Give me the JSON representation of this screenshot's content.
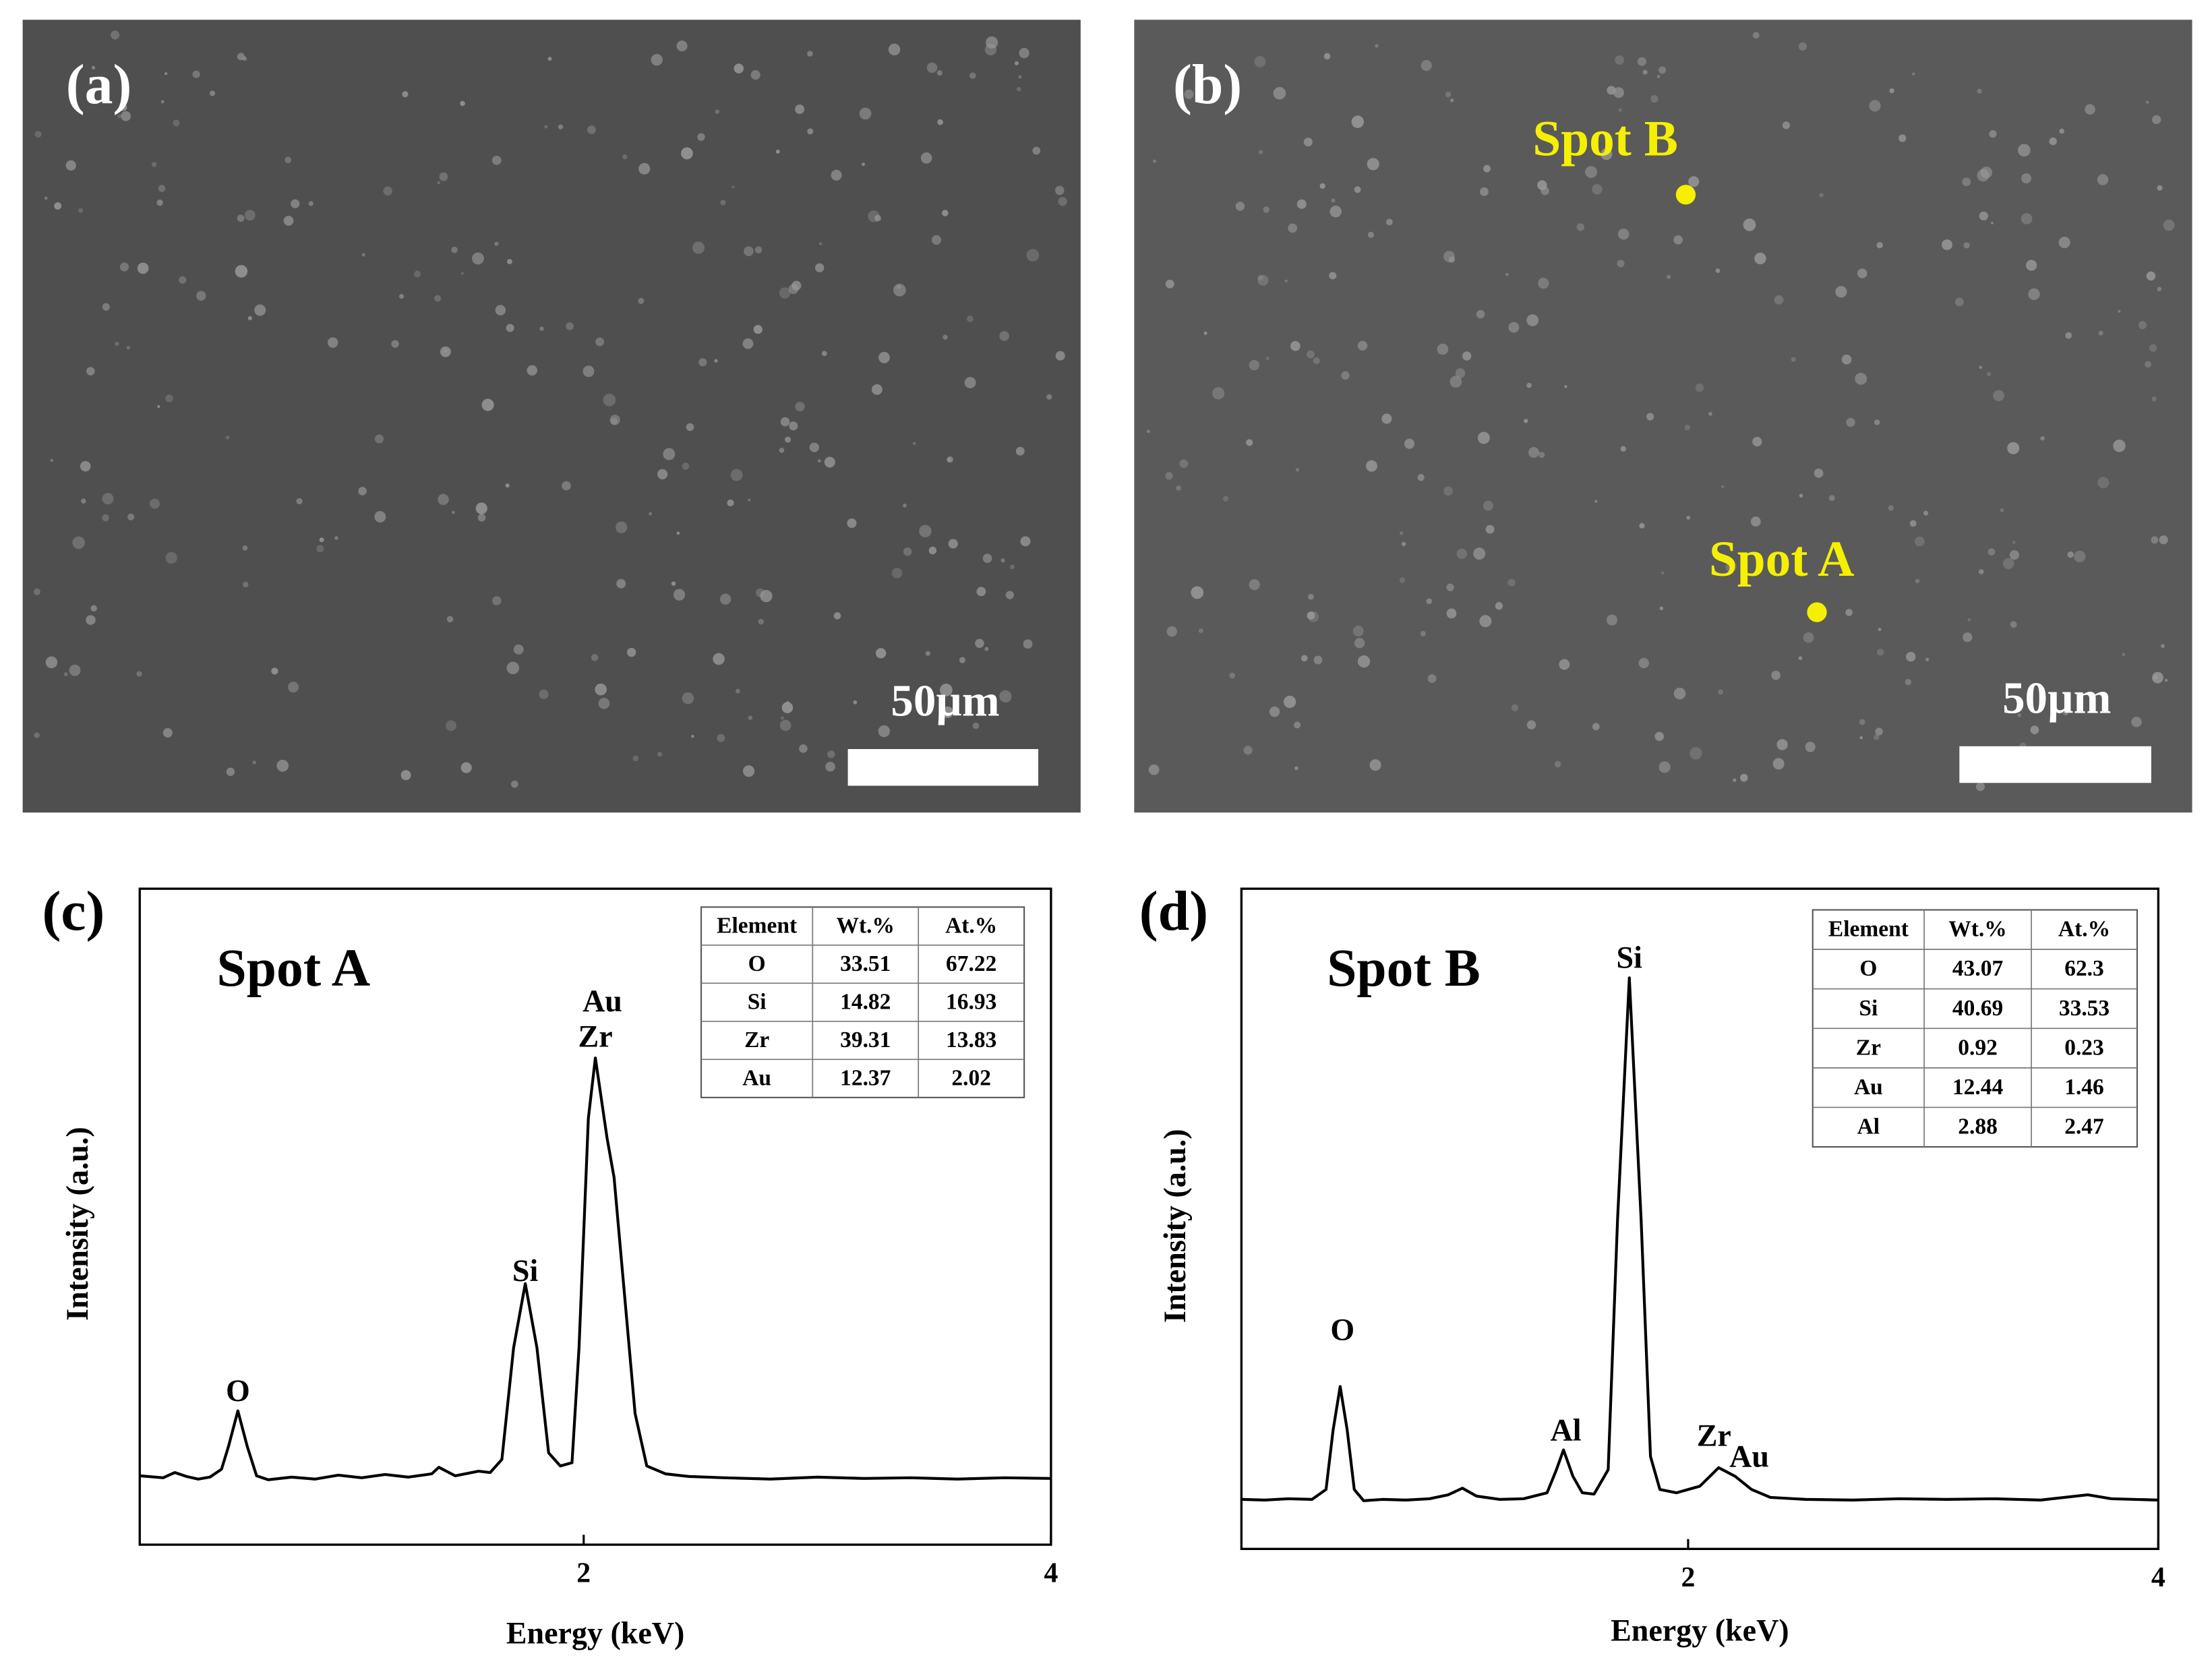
{
  "panels": [
    {
      "label": "(a)",
      "scale_bar": "50µm"
    },
    {
      "label": "(b)",
      "scale_bar": "50µm",
      "spots": [
        "Spot B",
        "Spot A"
      ]
    }
  ],
  "chart_data": [
    {
      "type": "line",
      "panel_label": "(c)",
      "title": "Spot A",
      "x_label": "Energy (keV)",
      "y_label": "Intensity (a.u.)",
      "xlim": [
        0.1,
        4
      ],
      "ylim": [
        0,
        100
      ],
      "xticks": [
        2,
        4
      ],
      "color": "#000000",
      "x": [
        0.1,
        0.2,
        0.25,
        0.3,
        0.35,
        0.4,
        0.45,
        0.48,
        0.52,
        0.56,
        0.6,
        0.65,
        0.75,
        0.85,
        0.95,
        1.05,
        1.15,
        1.25,
        1.35,
        1.38,
        1.45,
        1.55,
        1.6,
        1.65,
        1.7,
        1.75,
        1.8,
        1.85,
        1.9,
        1.95,
        1.98,
        2.02,
        2.05,
        2.1,
        2.13,
        2.17,
        2.22,
        2.27,
        2.35,
        2.45,
        2.6,
        2.8,
        3.0,
        3.2,
        3.4,
        3.6,
        3.8,
        4.0
      ],
      "values": [
        10.5,
        10.2,
        11.0,
        10.4,
        10.0,
        10.3,
        11.5,
        15,
        20.4,
        15,
        10.5,
        9.9,
        10.3,
        10.0,
        10.6,
        10.2,
        10.7,
        10.3,
        10.8,
        11.8,
        10.5,
        11.2,
        11.0,
        13,
        30,
        39.8,
        30,
        14,
        12,
        12.5,
        30,
        65,
        74.2,
        62,
        56,
        40,
        20,
        12,
        10.8,
        10.4,
        10.2,
        10.0,
        10.3,
        10.1,
        10.2,
        10.0,
        10.2,
        10.1
      ],
      "annotations": [
        {
          "text": "O",
          "x": 0.52,
          "y": 23.0
        },
        {
          "text": "Si",
          "x": 1.75,
          "y": 41.3
        },
        {
          "text": "Au",
          "x": 2.08,
          "y": 82.4
        },
        {
          "text": "Zr",
          "x": 2.05,
          "y": 77.0
        }
      ],
      "table": {
        "header": [
          "Element",
          "Wt.%",
          "At.%"
        ],
        "rows": [
          [
            "O",
            33.51,
            67.22
          ],
          [
            "Si",
            14.82,
            16.93
          ],
          [
            "Zr",
            39.31,
            13.83
          ],
          [
            "Au",
            12.37,
            2.02
          ]
        ]
      }
    },
    {
      "type": "line",
      "panel_label": "(d)",
      "title": "Spot B",
      "x_label": "Energy (keV)",
      "y_label": "Intensity (a.u.)",
      "xlim": [
        0.1,
        4
      ],
      "ylim": [
        0,
        100
      ],
      "xticks": [
        2,
        4
      ],
      "color": "#000000",
      "x": [
        0.1,
        0.2,
        0.3,
        0.4,
        0.46,
        0.49,
        0.52,
        0.55,
        0.58,
        0.62,
        0.7,
        0.8,
        0.9,
        0.98,
        1.04,
        1.1,
        1.2,
        1.3,
        1.4,
        1.44,
        1.47,
        1.51,
        1.55,
        1.6,
        1.66,
        1.7,
        1.75,
        1.8,
        1.84,
        1.88,
        1.95,
        2.05,
        2.13,
        2.2,
        2.27,
        2.35,
        2.5,
        2.7,
        2.9,
        3.1,
        3.3,
        3.5,
        3.7,
        3.8,
        4.0
      ],
      "values": [
        7.5,
        7.4,
        7.6,
        7.5,
        9,
        18,
        24.6,
        18,
        9,
        7.3,
        7.5,
        7.4,
        7.6,
        8.2,
        9.2,
        8,
        7.5,
        7.6,
        8.5,
        12,
        15,
        11,
        8.5,
        8.3,
        12,
        50,
        86.5,
        50,
        14,
        9,
        8.5,
        9.5,
        12.3,
        11,
        9,
        7.8,
        7.5,
        7.4,
        7.6,
        7.5,
        7.6,
        7.4,
        8.2,
        7.6,
        7.4
      ],
      "annotations": [
        {
          "text": "O",
          "x": 0.53,
          "y": 32.7
        },
        {
          "text": "Al",
          "x": 1.48,
          "y": 17.5
        },
        {
          "text": "Si",
          "x": 1.75,
          "y": 89.1
        },
        {
          "text": "Zr",
          "x": 2.11,
          "y": 16.7
        },
        {
          "text": "Au",
          "x": 2.26,
          "y": 13.5
        }
      ],
      "table": {
        "header": [
          "Element",
          "Wt.%",
          "At.%"
        ],
        "rows": [
          [
            "O",
            43.07,
            62.3
          ],
          [
            "Si",
            40.69,
            33.53
          ],
          [
            "Zr",
            0.92,
            0.23
          ],
          [
            "Au",
            12.44,
            1.46
          ],
          [
            "Al",
            2.88,
            2.47
          ]
        ]
      }
    }
  ]
}
